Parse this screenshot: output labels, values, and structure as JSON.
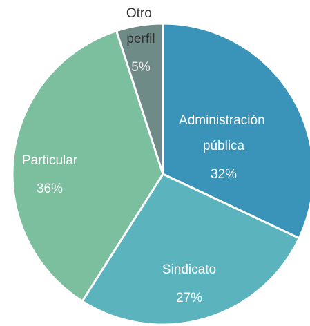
{
  "chart_data": {
    "type": "pie",
    "categories": [
      "Administración pública",
      "Sindicato",
      "Particular",
      "Otro perfil"
    ],
    "values": [
      32,
      27,
      36,
      5
    ],
    "value_labels": [
      "32%",
      "27%",
      "36%",
      "5%"
    ],
    "colors": [
      "#3a93b9",
      "#5bb4bd",
      "#7cbf9e",
      "#6f8b88"
    ]
  }
}
